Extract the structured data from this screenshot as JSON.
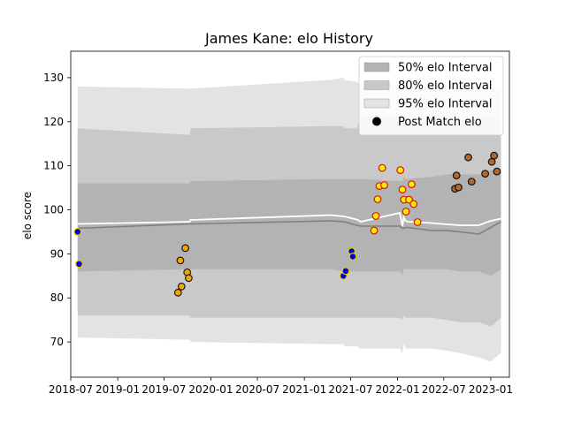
{
  "chart_data": {
    "type": "scatter",
    "title": "James Kane: elo History",
    "xlabel": "",
    "ylabel": "elo score",
    "xlim": [
      "2018-07-01",
      "2023-03-15"
    ],
    "ylim": [
      62,
      136
    ],
    "x_ticks": [
      "2018-07",
      "2019-01",
      "2019-07",
      "2020-01",
      "2020-07",
      "2021-01",
      "2021-07",
      "2022-01",
      "2022-07",
      "2023-01"
    ],
    "x_tick_dates": [
      "2018-07-01",
      "2019-01-01",
      "2019-07-01",
      "2020-01-01",
      "2020-07-01",
      "2021-01-01",
      "2021-07-01",
      "2022-01-01",
      "2022-07-01",
      "2023-01-01"
    ],
    "y_ticks": [
      70,
      80,
      90,
      100,
      110,
      120,
      130
    ],
    "grid": false,
    "legend": {
      "position": "top-right",
      "entries": [
        "50% elo Interval",
        "80% elo Interval",
        "95% elo Interval",
        "Post Match elo"
      ]
    },
    "colors": {
      "interval_50": "#b3b3b3",
      "interval_80": "#c9c9c9",
      "interval_95": "#e3e3e3",
      "median_line": "#808080",
      "mean_line": "#ffffff"
    },
    "bands": {
      "dates": [
        "2018-07-28",
        "2019-10-10",
        "2019-10-13",
        "2021-04-15",
        "2021-06-03",
        "2021-06-06",
        "2021-07-25",
        "2021-08-10",
        "2022-01-10",
        "2022-01-20",
        "2022-01-25",
        "2022-02-01",
        "2022-02-10",
        "2022-05-15",
        "2022-07-15",
        "2022-09-01",
        "2022-11-15",
        "2023-01-01",
        "2023-02-10"
      ],
      "p50_lo": [
        86.0,
        86.5,
        86.5,
        86.5,
        86.0,
        86.0,
        86.0,
        86.0,
        86.0,
        85.0,
        87.0,
        86.5,
        86.5,
        86.5,
        86.5,
        86.0,
        86.0,
        85.0,
        86.5
      ],
      "p50_hi": [
        106.0,
        106.0,
        106.5,
        107.0,
        107.0,
        107.0,
        107.0,
        107.0,
        106.5,
        106.5,
        107.5,
        107.0,
        107.0,
        107.5,
        108.0,
        108.0,
        108.0,
        109.0,
        108.5
      ],
      "p80_lo": [
        76.0,
        76.0,
        75.5,
        75.5,
        75.5,
        75.5,
        75.5,
        75.5,
        75.5,
        75.0,
        76.0,
        75.5,
        75.5,
        75.5,
        75.0,
        74.5,
        74.5,
        73.5,
        75.5
      ],
      "p80_hi": [
        118.5,
        117.0,
        118.5,
        119.0,
        119.0,
        118.5,
        118.5,
        121.5,
        121.0,
        118.0,
        121.0,
        120.5,
        120.5,
        120.5,
        120.5,
        120.5,
        120.5,
        121.0,
        120.5
      ],
      "p95_lo": [
        71.0,
        70.5,
        70.0,
        69.5,
        69.5,
        69.0,
        69.0,
        68.5,
        68.5,
        67.5,
        69.5,
        68.5,
        68.5,
        68.5,
        68.0,
        67.5,
        66.5,
        65.5,
        67.5
      ],
      "p95_hi": [
        128.0,
        127.5,
        127.5,
        129.5,
        130.0,
        129.5,
        129.0,
        128.5,
        128.5,
        128.0,
        128.5,
        128.0,
        128.0,
        128.5,
        128.5,
        128.5,
        128.0,
        128.0,
        128.0
      ],
      "median": [
        95.8,
        96.8,
        96.8,
        97.5,
        97.3,
        97.3,
        96.5,
        96.3,
        96.3,
        95.8,
        95.8,
        96.0,
        96.0,
        95.3,
        95.3,
        95.0,
        94.5,
        96.0,
        97.3
      ],
      "mean": [
        96.8,
        97.3,
        97.7,
        98.8,
        98.5,
        98.5,
        97.8,
        97.3,
        99.3,
        96.3,
        98.3,
        97.5,
        97.3,
        97.0,
        96.7,
        96.5,
        96.5,
        97.5,
        98.0
      ]
    },
    "series": [
      {
        "name": "Post Match elo",
        "style": {
          "fill": "#0000cc",
          "edge": "#e8c800"
        },
        "points": [
          {
            "x": "2018-07-28",
            "y": 95.0
          },
          {
            "x": "2018-08-03",
            "y": 87.7
          },
          {
            "x": "2021-06-03",
            "y": 85.0
          },
          {
            "x": "2021-06-12",
            "y": 86.1
          },
          {
            "x": "2021-07-05",
            "y": 90.6
          },
          {
            "x": "2021-07-10",
            "y": 89.4
          }
        ]
      },
      {
        "name": "Post Match elo",
        "style": {
          "fill": "#f5a500",
          "edge": "#1a1a1a"
        },
        "points": [
          {
            "x": "2019-08-25",
            "y": 81.2
          },
          {
            "x": "2019-09-03",
            "y": 88.5
          },
          {
            "x": "2019-09-08",
            "y": 82.6
          },
          {
            "x": "2019-09-23",
            "y": 91.3
          },
          {
            "x": "2019-09-30",
            "y": 85.8
          },
          {
            "x": "2019-10-06",
            "y": 84.5
          }
        ]
      },
      {
        "name": "Post Match elo",
        "style": {
          "fill": "#ffee00",
          "edge": "#dd1111"
        },
        "points": [
          {
            "x": "2021-10-01",
            "y": 95.3
          },
          {
            "x": "2021-10-08",
            "y": 98.6
          },
          {
            "x": "2021-10-15",
            "y": 102.4
          },
          {
            "x": "2021-10-22",
            "y": 105.4
          },
          {
            "x": "2021-11-02",
            "y": 109.5
          },
          {
            "x": "2021-11-10",
            "y": 105.6
          },
          {
            "x": "2022-01-12",
            "y": 109.0
          },
          {
            "x": "2022-01-20",
            "y": 104.6
          },
          {
            "x": "2022-01-26",
            "y": 102.3
          },
          {
            "x": "2022-02-03",
            "y": 99.6
          },
          {
            "x": "2022-02-15",
            "y": 102.3
          },
          {
            "x": "2022-02-25",
            "y": 105.8
          },
          {
            "x": "2022-03-05",
            "y": 101.3
          },
          {
            "x": "2022-03-20",
            "y": 97.2
          }
        ]
      },
      {
        "name": "Post Match elo",
        "style": {
          "fill": "#b06a30",
          "edge": "#111111"
        },
        "points": [
          {
            "x": "2022-08-14",
            "y": 104.8
          },
          {
            "x": "2022-08-20",
            "y": 107.8
          },
          {
            "x": "2022-08-28",
            "y": 105.1
          },
          {
            "x": "2022-10-05",
            "y": 111.9
          },
          {
            "x": "2022-10-18",
            "y": 106.4
          },
          {
            "x": "2022-12-10",
            "y": 108.2
          },
          {
            "x": "2023-01-05",
            "y": 110.9
          },
          {
            "x": "2023-01-14",
            "y": 112.3
          },
          {
            "x": "2023-01-25",
            "y": 108.7
          }
        ]
      }
    ]
  }
}
